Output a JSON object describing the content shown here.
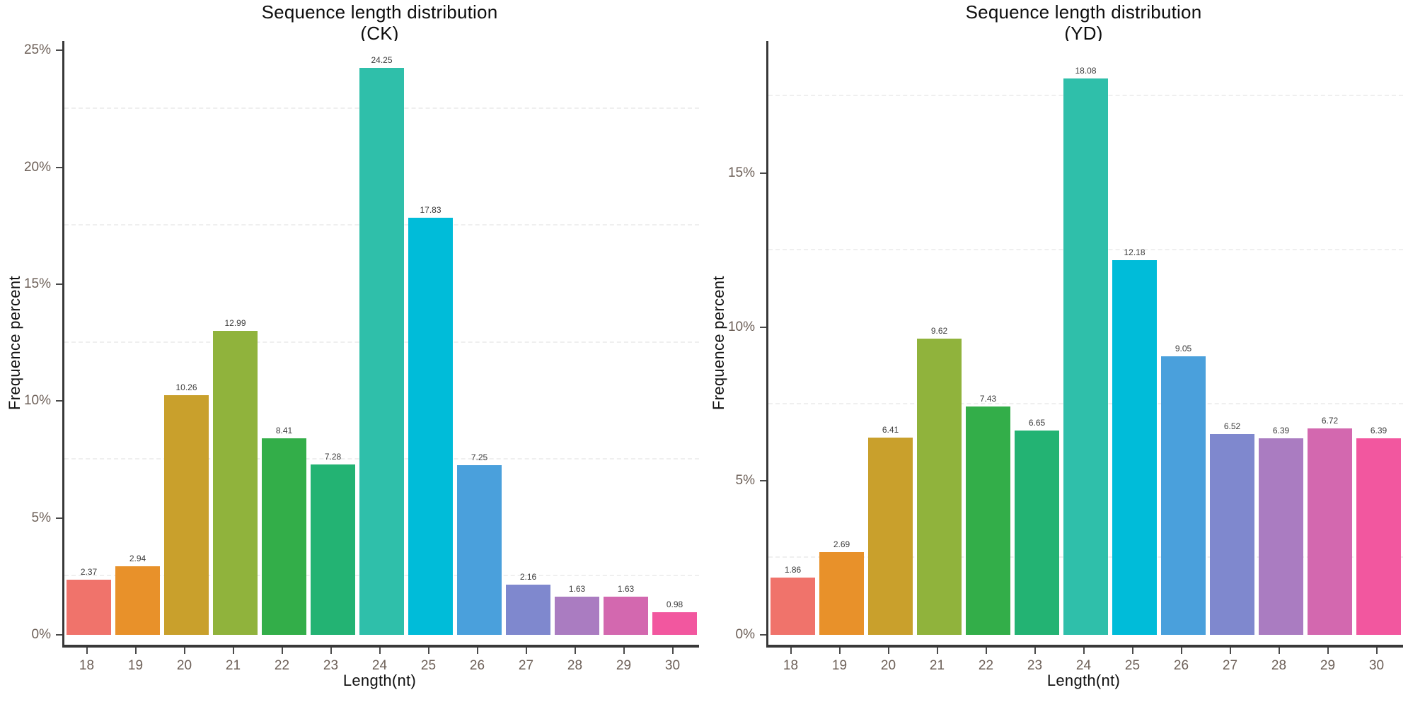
{
  "figure_background": "#ffffff",
  "axis_color": "#383838",
  "tick_label_color": "#6d6058",
  "value_label_color": "#3c3c3c",
  "chart_data": [
    {
      "type": "bar",
      "title": "Sequence length distribution (CK)",
      "title_lines": [
        "Sequence length distribution",
        "(CK)"
      ],
      "xlabel": "Length(nt)",
      "ylabel": "Frequence percent",
      "categories": [
        "18",
        "19",
        "20",
        "21",
        "22",
        "23",
        "24",
        "25",
        "26",
        "27",
        "28",
        "29",
        "30"
      ],
      "values": [
        2.37,
        2.94,
        10.26,
        12.99,
        8.41,
        7.28,
        24.25,
        17.83,
        7.25,
        2.16,
        1.63,
        1.63,
        0.98
      ],
      "bar_colors": [
        "#F0736B",
        "#E8912A",
        "#C9A02C",
        "#90B33C",
        "#33AE49",
        "#23B373",
        "#2FBFAA",
        "#00BCD9",
        "#4AA0DC",
        "#7F88CE",
        "#AA7CC1",
        "#D368AF",
        "#F2579F"
      ],
      "ylim": [
        0,
        25.4
      ],
      "yticks": [
        0,
        5,
        10,
        15,
        20,
        25
      ],
      "ytick_labels": [
        "0%",
        "5%",
        "10%",
        "15%",
        "20%",
        "25%"
      ],
      "minor_grid_step": 2.5,
      "grid": "minor-dashed-horizontal",
      "legend": "none"
    },
    {
      "type": "bar",
      "title": "Sequence length distribution (YD)",
      "title_lines": [
        "Sequence length distribution",
        "(YD)"
      ],
      "xlabel": "Length(nt)",
      "ylabel": "Frequence percent",
      "categories": [
        "18",
        "19",
        "20",
        "21",
        "22",
        "23",
        "24",
        "25",
        "26",
        "27",
        "28",
        "29",
        "30"
      ],
      "values": [
        1.86,
        2.69,
        6.41,
        9.62,
        7.43,
        6.65,
        18.08,
        12.18,
        9.05,
        6.52,
        6.39,
        6.72,
        6.39
      ],
      "bar_colors": [
        "#F0736B",
        "#E8912A",
        "#C9A02C",
        "#90B33C",
        "#33AE49",
        "#23B373",
        "#2FBFAA",
        "#00BCD9",
        "#4AA0DC",
        "#7F88CE",
        "#AA7CC1",
        "#D368AF",
        "#F2579F"
      ],
      "ylim": [
        0,
        19.3
      ],
      "yticks": [
        0,
        5,
        10,
        15
      ],
      "ytick_labels": [
        "0%",
        "5%",
        "10%",
        "15%"
      ],
      "minor_grid_step": 2.5,
      "grid": "minor-dashed-horizontal",
      "legend": "none"
    }
  ]
}
